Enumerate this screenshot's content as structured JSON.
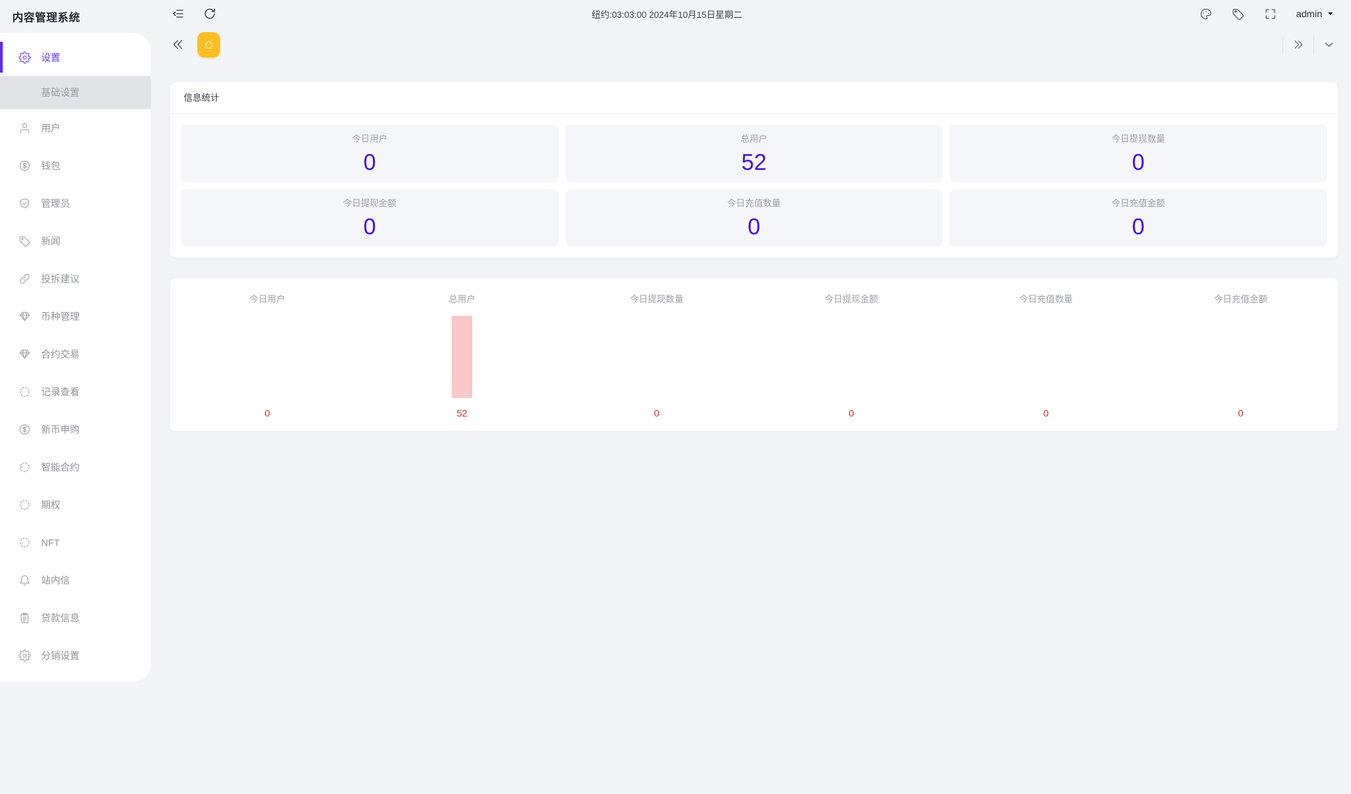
{
  "app": {
    "title": "内容管理系统"
  },
  "topbar": {
    "time": "纽约:03:03:00 2024年10月15日星期二",
    "username": "admin",
    "icons": [
      "collapse-menu-icon",
      "refresh-icon",
      "palette-icon",
      "tag-icon",
      "fullscreen-icon",
      "caret-down-icon"
    ]
  },
  "tabbar": {
    "tabs": [
      {
        "name": "home",
        "icon": "home-icon",
        "active": true
      }
    ],
    "controls": [
      "chevrons-left-icon",
      "chevrons-right-icon",
      "chevron-down-icon"
    ]
  },
  "sidebar": {
    "items": [
      {
        "name": "settings",
        "label": "设置",
        "icon": "gear",
        "active": true
      },
      {
        "name": "basic-settings",
        "label": "基础设置",
        "type": "submenu",
        "selected": true
      },
      {
        "name": "users",
        "label": "用户",
        "icon": "user"
      },
      {
        "name": "wallet",
        "label": "钱包",
        "icon": "dollar"
      },
      {
        "name": "admins",
        "label": "管理员",
        "icon": "shield"
      },
      {
        "name": "news",
        "label": "新闻",
        "icon": "tag"
      },
      {
        "name": "feedback",
        "label": "投拆建议",
        "icon": "link"
      },
      {
        "name": "coin-management",
        "label": "币种管理",
        "icon": "gem"
      },
      {
        "name": "contract-trading",
        "label": "合约交易",
        "icon": "gem"
      },
      {
        "name": "record-view",
        "label": "记录查看",
        "icon": "dashed"
      },
      {
        "name": "new-coin-subscription",
        "label": "新币申购",
        "icon": "dollar"
      },
      {
        "name": "smart-contract",
        "label": "智能合约",
        "icon": "dashed"
      },
      {
        "name": "options",
        "label": "期权",
        "icon": "dashed"
      },
      {
        "name": "nft",
        "label": "NFT",
        "icon": "dashed"
      },
      {
        "name": "site-messages",
        "label": "站内信",
        "icon": "bell"
      },
      {
        "name": "loan-info",
        "label": "贷款信息",
        "icon": "clipboard"
      },
      {
        "name": "distribution-settings",
        "label": "分销设置",
        "icon": "gear"
      }
    ]
  },
  "stats": {
    "title": "信息统计",
    "cards": [
      {
        "label": "今日用户",
        "value": "0"
      },
      {
        "label": "总用户",
        "value": "52"
      },
      {
        "label": "今日提现数量",
        "value": "0"
      },
      {
        "label": "今日提现金额",
        "value": "0"
      },
      {
        "label": "今日充值数量",
        "value": "0"
      },
      {
        "label": "今日充值金额",
        "value": "0"
      }
    ]
  },
  "chart_data": {
    "type": "bar",
    "categories": [
      "今日用户",
      "总用户",
      "今日提现数量",
      "今日提现金额",
      "今日充值数量",
      "今日充值金额"
    ],
    "values": [
      0,
      52,
      0,
      0,
      0,
      0
    ],
    "value_labels": [
      "0",
      "52",
      "0",
      "0",
      "0",
      "0"
    ],
    "ylim": [
      0,
      52
    ],
    "bar_color": "#f9c8c8",
    "value_color": "#cf3030",
    "grid": false,
    "legend": "none"
  },
  "colors": {
    "accent_purple": "#5e2cf0",
    "stat_number": "#4a11cc",
    "tab_active_yellow": "#fcbe23",
    "bar_pink": "#f9c8c8",
    "chart_value_red": "#cf3030"
  }
}
